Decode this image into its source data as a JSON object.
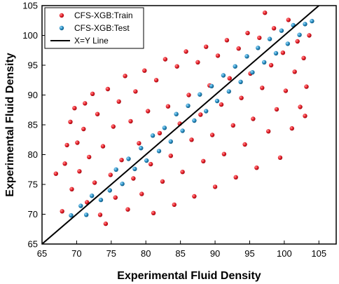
{
  "chart_data": {
    "type": "scatter",
    "xlabel": "Experimental Fluid Density",
    "ylabel": "Experimental Fluid Density",
    "xlim": [
      65,
      107.5
    ],
    "ylim": [
      65,
      105
    ],
    "xticks": [
      "65",
      "70",
      "75",
      "80",
      "85",
      "90",
      "95",
      "100",
      "105"
    ],
    "yticks": [
      "65",
      "70",
      "75",
      "80",
      "85",
      "90",
      "95",
      "100",
      "105"
    ],
    "grid": false,
    "legend_position": "top-left",
    "series": [
      {
        "name": "CFS-XGB:Train",
        "color": "#e8202a",
        "sample_points": [
          [
            67.0,
            76.8
          ],
          [
            67.9,
            70.5
          ],
          [
            68.3,
            78.5
          ],
          [
            68.6,
            81.6
          ],
          [
            69.1,
            85.5
          ],
          [
            69.3,
            74.2
          ],
          [
            69.7,
            87.8
          ],
          [
            70.1,
            82.0
          ],
          [
            70.4,
            77.2
          ],
          [
            71.0,
            84.3
          ],
          [
            71.2,
            88.6
          ],
          [
            71.5,
            72.0
          ],
          [
            71.8,
            79.6
          ],
          [
            72.3,
            90.2
          ],
          [
            72.6,
            75.3
          ],
          [
            73.0,
            86.8
          ],
          [
            73.4,
            69.9
          ],
          [
            73.8,
            81.4
          ],
          [
            74.2,
            68.4
          ],
          [
            74.5,
            91.0
          ],
          [
            74.9,
            76.6
          ],
          [
            75.3,
            84.7
          ],
          [
            75.6,
            72.8
          ],
          [
            76.1,
            88.9
          ],
          [
            76.5,
            79.1
          ],
          [
            77.0,
            93.2
          ],
          [
            77.4,
            70.8
          ],
          [
            77.8,
            85.6
          ],
          [
            78.2,
            76.0
          ],
          [
            78.5,
            90.6
          ],
          [
            79.0,
            81.9
          ],
          [
            79.4,
            73.4
          ],
          [
            79.8,
            94.1
          ],
          [
            80.3,
            87.3
          ],
          [
            80.7,
            78.4
          ],
          [
            81.1,
            70.2
          ],
          [
            81.5,
            92.5
          ],
          [
            82.0,
            83.6
          ],
          [
            82.4,
            75.5
          ],
          [
            82.8,
            96.0
          ],
          [
            83.2,
            88.1
          ],
          [
            83.6,
            79.8
          ],
          [
            84.1,
            71.6
          ],
          [
            84.5,
            94.8
          ],
          [
            84.9,
            85.2
          ],
          [
            85.3,
            77.1
          ],
          [
            85.8,
            97.3
          ],
          [
            86.2,
            90.0
          ],
          [
            86.6,
            82.5
          ],
          [
            87.0,
            73.0
          ],
          [
            87.5,
            95.5
          ],
          [
            87.9,
            86.7
          ],
          [
            88.3,
            78.9
          ],
          [
            88.7,
            98.1
          ],
          [
            89.2,
            91.6
          ],
          [
            89.6,
            83.3
          ],
          [
            90.0,
            74.6
          ],
          [
            90.4,
            96.6
          ],
          [
            90.9,
            88.4
          ],
          [
            91.3,
            80.1
          ],
          [
            91.7,
            99.2
          ],
          [
            92.1,
            92.8
          ],
          [
            92.6,
            84.9
          ],
          [
            93.0,
            76.2
          ],
          [
            93.4,
            97.8
          ],
          [
            93.8,
            89.5
          ],
          [
            94.3,
            81.7
          ],
          [
            94.7,
            100.4
          ],
          [
            95.1,
            93.6
          ],
          [
            95.5,
            86.0
          ],
          [
            96.0,
            77.8
          ],
          [
            96.4,
            99.6
          ],
          [
            96.8,
            91.2
          ],
          [
            97.2,
            103.8
          ],
          [
            97.7,
            83.9
          ],
          [
            98.1,
            95.0
          ],
          [
            98.5,
            101.2
          ],
          [
            98.9,
            87.6
          ],
          [
            99.4,
            79.5
          ],
          [
            99.8,
            97.1
          ],
          [
            100.2,
            90.7
          ],
          [
            100.6,
            102.6
          ],
          [
            101.1,
            84.4
          ],
          [
            101.5,
            93.9
          ],
          [
            101.9,
            99.0
          ],
          [
            102.3,
            88.0
          ],
          [
            102.8,
            96.2
          ],
          [
            103.2,
            91.4
          ],
          [
            103.6,
            100.0
          ],
          [
            103.0,
            86.5
          ]
        ]
      },
      {
        "name": "CFS-XGB:Test",
        "color": "#2a8fc4",
        "sample_points": [
          [
            69.2,
            69.8
          ],
          [
            70.6,
            71.4
          ],
          [
            71.4,
            69.9
          ],
          [
            72.2,
            73.1
          ],
          [
            73.5,
            72.4
          ],
          [
            74.8,
            74.0
          ],
          [
            75.7,
            77.5
          ],
          [
            76.6,
            75.1
          ],
          [
            77.5,
            79.3
          ],
          [
            78.4,
            77.6
          ],
          [
            79.3,
            81.1
          ],
          [
            80.1,
            79.0
          ],
          [
            81.0,
            83.2
          ],
          [
            81.9,
            80.6
          ],
          [
            82.7,
            84.5
          ],
          [
            83.6,
            82.2
          ],
          [
            84.4,
            86.8
          ],
          [
            85.3,
            84.0
          ],
          [
            86.1,
            88.2
          ],
          [
            87.0,
            85.7
          ],
          [
            87.8,
            90.1
          ],
          [
            88.7,
            87.3
          ],
          [
            89.5,
            91.5
          ],
          [
            90.3,
            89.0
          ],
          [
            91.2,
            93.3
          ],
          [
            92.0,
            90.6
          ],
          [
            92.9,
            94.8
          ],
          [
            93.7,
            92.2
          ],
          [
            94.6,
            96.5
          ],
          [
            95.4,
            93.8
          ],
          [
            96.2,
            97.9
          ],
          [
            97.1,
            95.5
          ],
          [
            97.9,
            99.4
          ],
          [
            98.8,
            97.0
          ],
          [
            99.6,
            100.8
          ],
          [
            100.5,
            98.6
          ],
          [
            101.3,
            101.7
          ],
          [
            102.2,
            100.1
          ],
          [
            103.0,
            101.9
          ],
          [
            104.0,
            102.4
          ]
        ]
      },
      {
        "name": "X=Y Line",
        "color": "#000000",
        "line": [
          [
            65,
            65
          ],
          [
            107.5,
            107.5
          ]
        ]
      }
    ]
  }
}
